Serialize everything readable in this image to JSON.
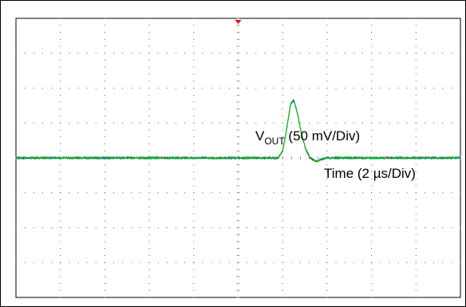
{
  "chart_data": {
    "type": "line",
    "title": "",
    "xlabel": "",
    "ylabel": "",
    "divisions": {
      "x": 10,
      "y": 8
    },
    "subdivisions_per_div": 5,
    "grid": true,
    "grid_style": "dotted",
    "x_scale_per_div_us": 2,
    "y_scale_per_div_mV": 50,
    "xlim_div": [
      0,
      10
    ],
    "ylim_div": [
      -4,
      4
    ],
    "trigger_marker": {
      "x_div": 6.0,
      "color": "#ff0000"
    },
    "series": [
      {
        "color": "#00c000",
        "points_div": [
          [
            0,
            0.0
          ],
          [
            1,
            0.0
          ],
          [
            2,
            0.0
          ],
          [
            3,
            0.0
          ],
          [
            4,
            0.0
          ],
          [
            5,
            0.0
          ],
          [
            5.9,
            0.0
          ],
          [
            6.0,
            0.2
          ],
          [
            6.1,
            0.9
          ],
          [
            6.18,
            1.55
          ],
          [
            6.25,
            1.65
          ],
          [
            6.33,
            1.3
          ],
          [
            6.42,
            0.7
          ],
          [
            6.52,
            0.25
          ],
          [
            6.62,
            0.0
          ],
          [
            6.75,
            -0.1
          ],
          [
            6.9,
            -0.03
          ],
          [
            7.0,
            0.0
          ],
          [
            8,
            0.0
          ],
          [
            9,
            0.0
          ],
          [
            10,
            0.0
          ]
        ]
      }
    ],
    "annotations": {
      "vout_main": "V",
      "vout_sub": "OUT",
      "vout_rest": " (50 mV/Div)",
      "time": "Time (2 µs/Div)"
    }
  }
}
